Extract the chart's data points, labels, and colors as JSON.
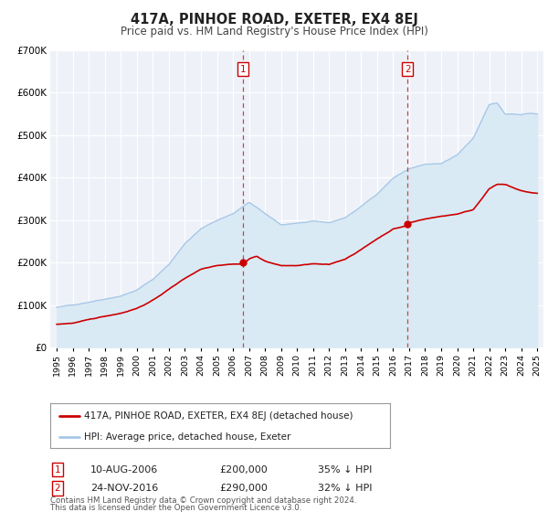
{
  "title": "417A, PINHOE ROAD, EXETER, EX4 8EJ",
  "subtitle": "Price paid vs. HM Land Registry's House Price Index (HPI)",
  "ylim": [
    0,
    700000
  ],
  "yticks": [
    0,
    100000,
    200000,
    300000,
    400000,
    500000,
    600000,
    700000
  ],
  "ytick_labels": [
    "£0",
    "£100K",
    "£200K",
    "£300K",
    "£400K",
    "£500K",
    "£600K",
    "£700K"
  ],
  "xlim_min": 1994.6,
  "xlim_max": 2025.4,
  "hpi_line_color": "#a8c8e8",
  "hpi_fill_color": "#daeaf5",
  "price_color": "#cc0000",
  "plot_bg": "#eef2f8",
  "grid_color": "#ffffff",
  "ann1_year": 2006.62,
  "ann1_price": 200000,
  "ann2_year": 2016.9,
  "ann2_price": 290000,
  "legend_line1": "417A, PINHOE ROAD, EXETER, EX4 8EJ (detached house)",
  "legend_line2": "HPI: Average price, detached house, Exeter",
  "table_row1": [
    "1",
    "10-AUG-2006",
    "£200,000",
    "35% ↓ HPI"
  ],
  "table_row2": [
    "2",
    "24-NOV-2016",
    "£290,000",
    "32% ↓ HPI"
  ],
  "footer1": "Contains HM Land Registry data © Crown copyright and database right 2024.",
  "footer2": "This data is licensed under the Open Government Licence v3.0."
}
